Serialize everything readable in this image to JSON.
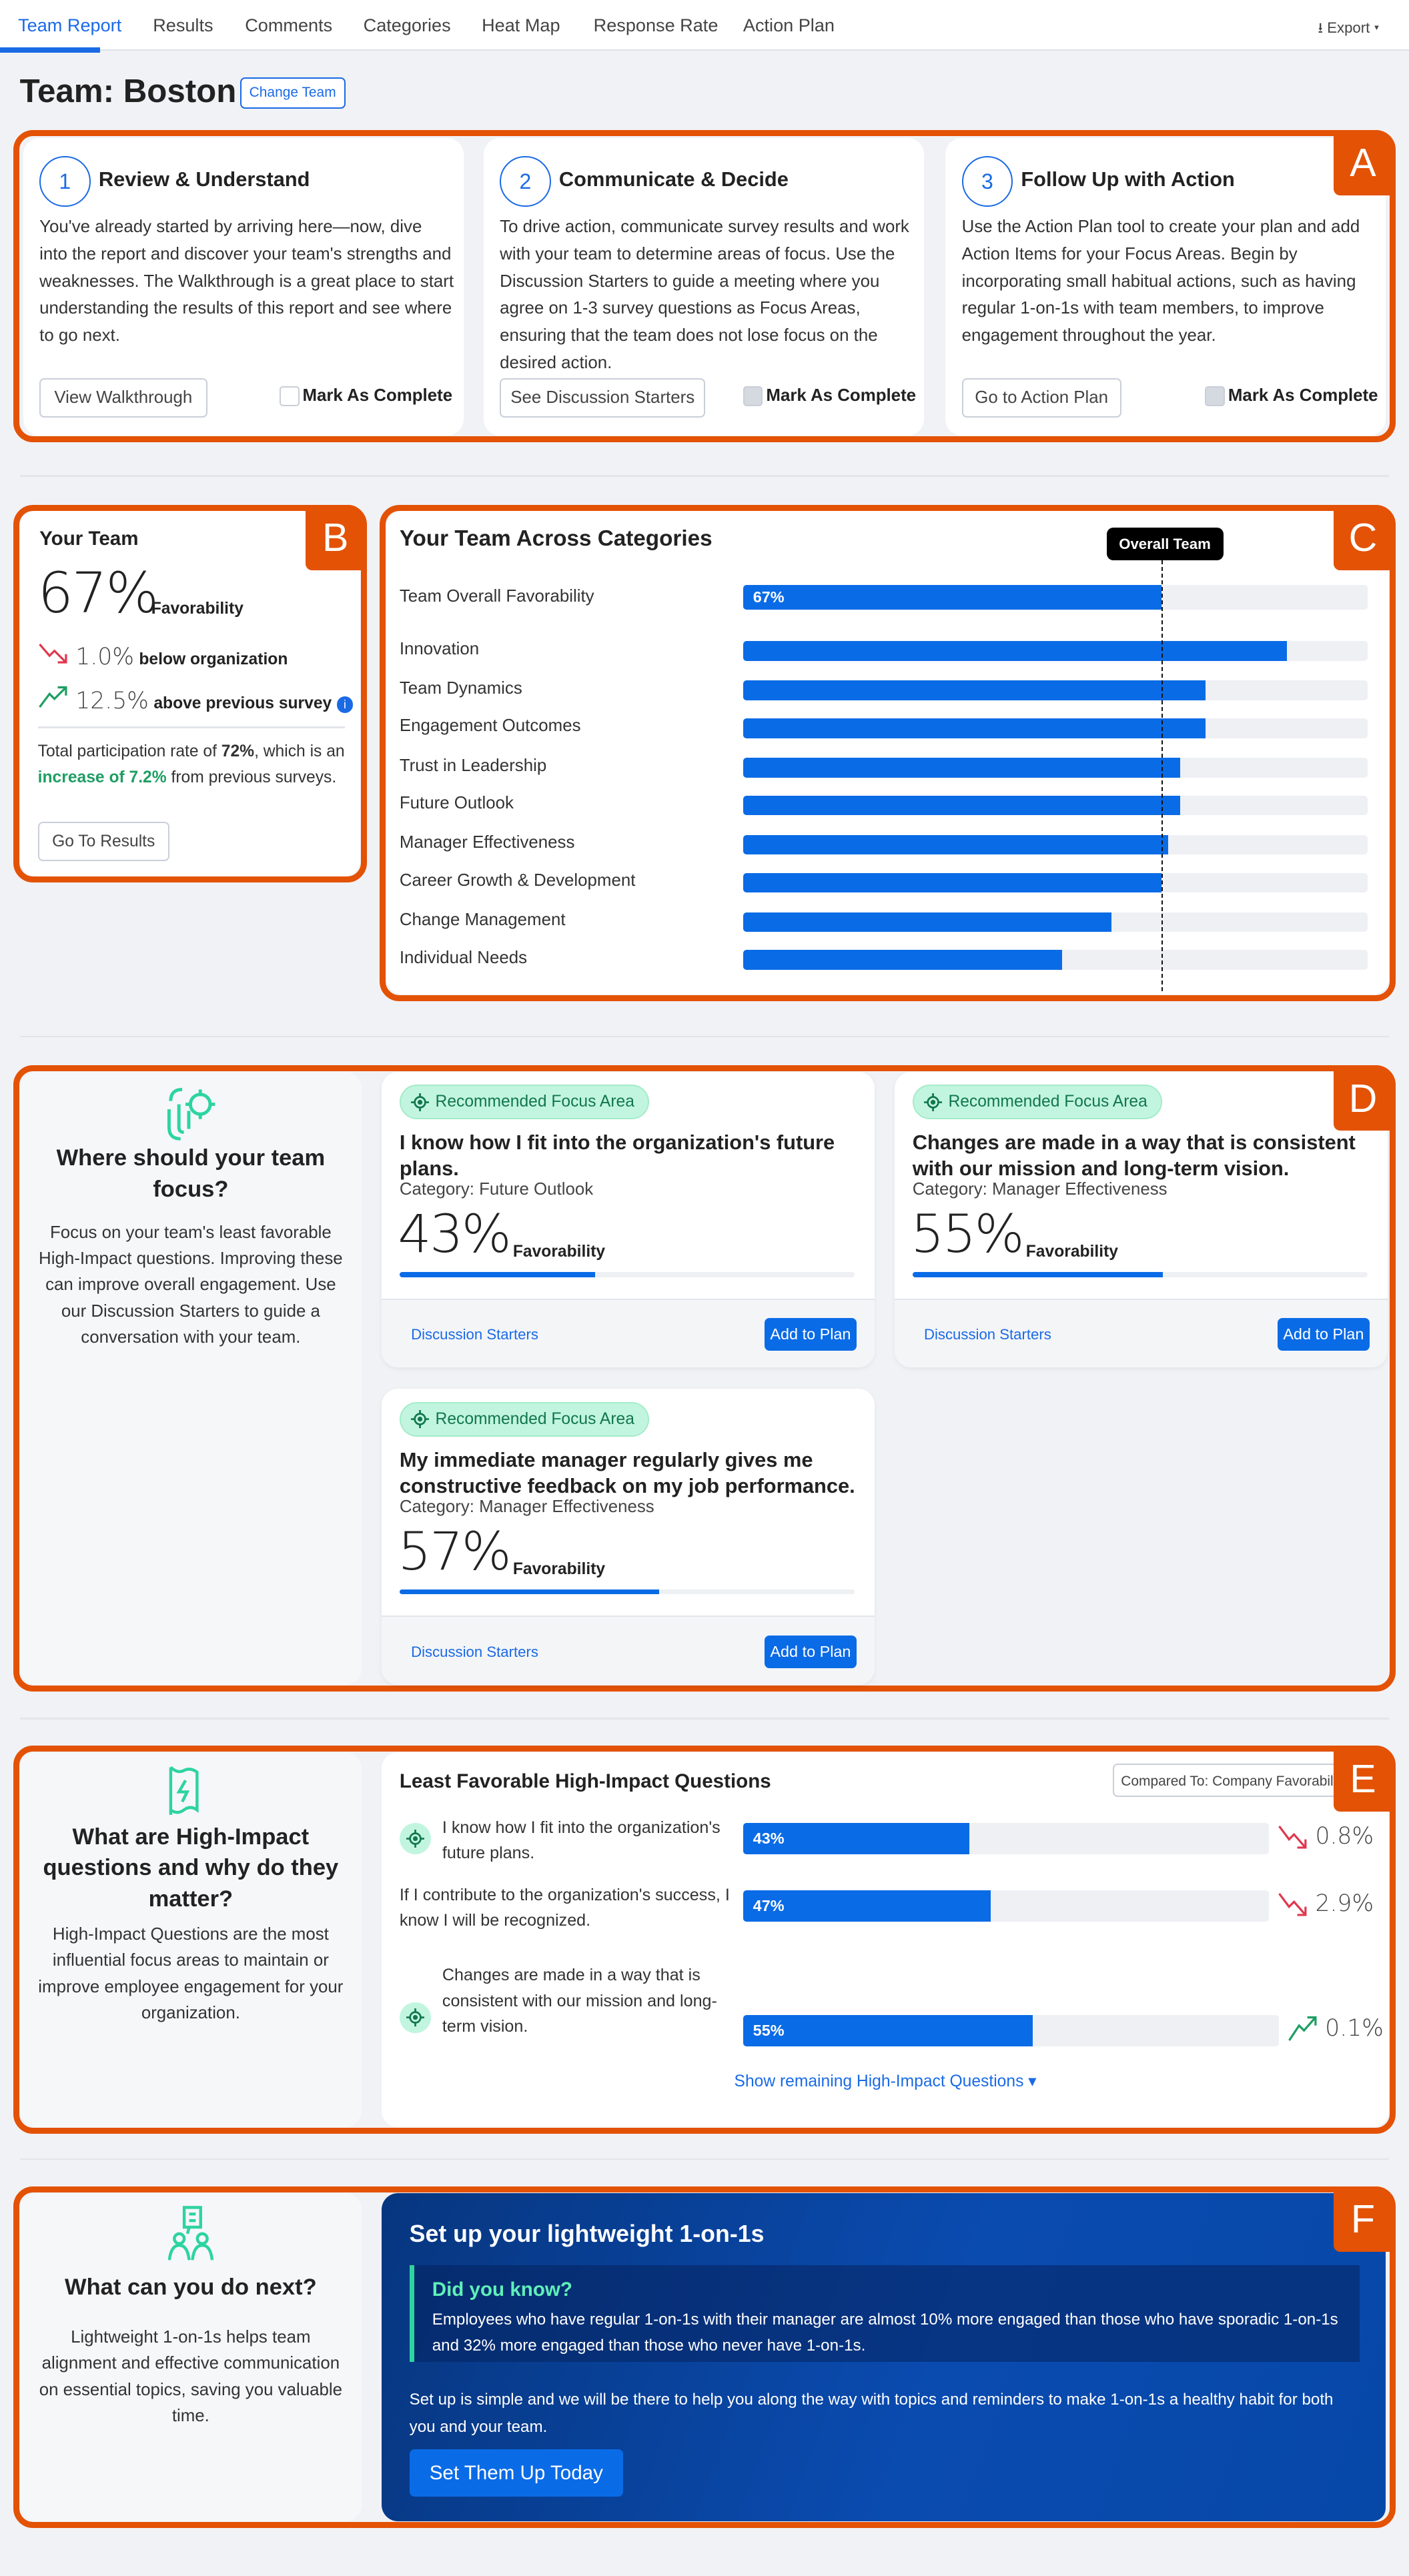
{
  "nav": {
    "tabs": [
      "Team Report",
      "Results",
      "Comments",
      "Categories",
      "Heat Map",
      "Response Rate",
      "Action Plan"
    ],
    "active": "Team Report",
    "export_label": "Export"
  },
  "header": {
    "title": "Team: Boston",
    "change_team": "Change Team"
  },
  "colors": {
    "accent": "#0a6be6",
    "highlight": "#e35205",
    "positive": "#1e9e63",
    "negative": "#e0384d",
    "focus_badge_bg": "#c2f5df"
  },
  "section_labels": [
    "A",
    "B",
    "C",
    "D",
    "E",
    "F"
  ],
  "steps": [
    {
      "num": "1",
      "title": "Review & Understand",
      "body": "You've already started by arriving here—now, dive into the report and discover your team's strengths and weaknesses. The Walkthrough is a great place to start understanding the results of this report and see where to go next.",
      "button": "View Walkthrough",
      "mark": "Mark As Complete"
    },
    {
      "num": "2",
      "title": "Communicate & Decide",
      "body": "To drive action, communicate survey results and work with your team to determine areas of focus. Use the Discussion Starters to guide a meeting where you agree on 1-3 survey questions as Focus Areas, ensuring that the team does not lose focus on the desired action.",
      "button": "See Discussion Starters",
      "mark": "Mark As Complete"
    },
    {
      "num": "3",
      "title": "Follow Up with Action",
      "body": "Use the Action Plan tool to create your plan and add Action Items for your Focus Areas. Begin by incorporating small habitual actions, such as having regular 1-on-1s with team members, to improve engagement throughout the year.",
      "button": "Go to Action Plan",
      "mark": "Mark As Complete"
    }
  ],
  "your_team": {
    "title": "Your Team",
    "favorability": "67%",
    "fav_label": "Favorability",
    "vs_org_value": "1.0%",
    "vs_org_label": "below organization",
    "vs_prev_value": "12.5%",
    "vs_prev_label": "above previous survey",
    "participation_pre": "Total participation rate of ",
    "participation_rate": "72%",
    "participation_mid": ", which is an ",
    "participation_increase": "increase of 7.2%",
    "participation_post": " from previous surveys.",
    "button": "Go To Results"
  },
  "chart_data": {
    "type": "bar",
    "title": "Your Team Across Categories",
    "reference_label": "Overall Team",
    "reference_value": 67,
    "xlim": [
      0,
      100
    ],
    "categories": [
      "Team Overall Favorability",
      "Innovation",
      "Team Dynamics",
      "Engagement Outcomes",
      "Trust in Leadership",
      "Future Outlook",
      "Manager Effectiveness",
      "Career Growth & Development",
      "Change Management",
      "Individual Needs"
    ],
    "values": [
      67,
      87,
      74,
      74,
      70,
      70,
      68,
      67,
      59,
      51
    ],
    "data_labels": [
      "67%",
      "",
      "",
      "",
      "",
      "",
      "",
      "",
      "",
      ""
    ]
  },
  "focus": {
    "heading": "Where should your team focus?",
    "body": "Focus on your team's least favorable High-Impact questions. Improving these can improve overall engagement. Use our Discussion Starters to guide a conversation with your team.",
    "cards": [
      {
        "badge": "Recommended Focus Area",
        "question": "I know how I fit into the organization's future plans.",
        "category": "Category: Future Outlook",
        "value": "43%",
        "pct": 43,
        "fav_label": "Favorability",
        "link": "Discussion Starters",
        "button": "Add to Plan"
      },
      {
        "badge": "Recommended Focus Area",
        "question": "Changes are made in a way that is consistent with our mission and long-term vision.",
        "category": "Category: Manager Effectiveness",
        "value": "55%",
        "pct": 55,
        "fav_label": "Favorability",
        "link": "Discussion Starters",
        "button": "Add to Plan"
      },
      {
        "badge": "Recommended Focus Area",
        "question": "My immediate manager regularly gives me constructive feedback on my job performance.",
        "category": "Category: Manager Effectiveness",
        "value": "57%",
        "pct": 57,
        "fav_label": "Favorability",
        "link": "Discussion Starters",
        "button": "Add to Plan"
      }
    ]
  },
  "high_impact": {
    "heading": "What are High-Impact questions and why do they matter?",
    "body": "High-Impact Questions are the most influential focus areas to maintain or improve employee engagement for your organization.",
    "title": "Least Favorable High-Impact Questions",
    "compare": "Compared To: Company Favorability",
    "rows": [
      {
        "question": "I know how I fit into the organization's future plans.",
        "value": "43%",
        "pct": 43,
        "change": "0.8%",
        "direction": "down",
        "focus": true
      },
      {
        "question": "If I contribute to the organization's success, I know I will be recognized.",
        "value": "47%",
        "pct": 47,
        "change": "2.9%",
        "direction": "down",
        "focus": false
      },
      {
        "question": "Changes are made in a way that is consistent with our mission and long-term vision.",
        "value": "55%",
        "pct": 55,
        "change": "0.1%",
        "direction": "up",
        "focus": true
      }
    ],
    "show_more": "Show remaining High-Impact Questions"
  },
  "next": {
    "heading": "What can you do next?",
    "body": "Lightweight 1-on-1s helps team alignment and effective communication on essential topics, saving you valuable time.",
    "hero_title": "Set up your lightweight 1-on-1s",
    "did_you_know": "Did you know?",
    "fact": "Employees who have regular 1-on-1s with their manager are almost 10% more engaged than those who have sporadic 1-on-1s and 32% more engaged than those who never have 1-on-1s.",
    "setup": "Set up is simple and we will be there to help you along the way with topics and reminders to make 1-on-1s a healthy habit for both you and your team.",
    "button": "Set Them Up Today"
  }
}
